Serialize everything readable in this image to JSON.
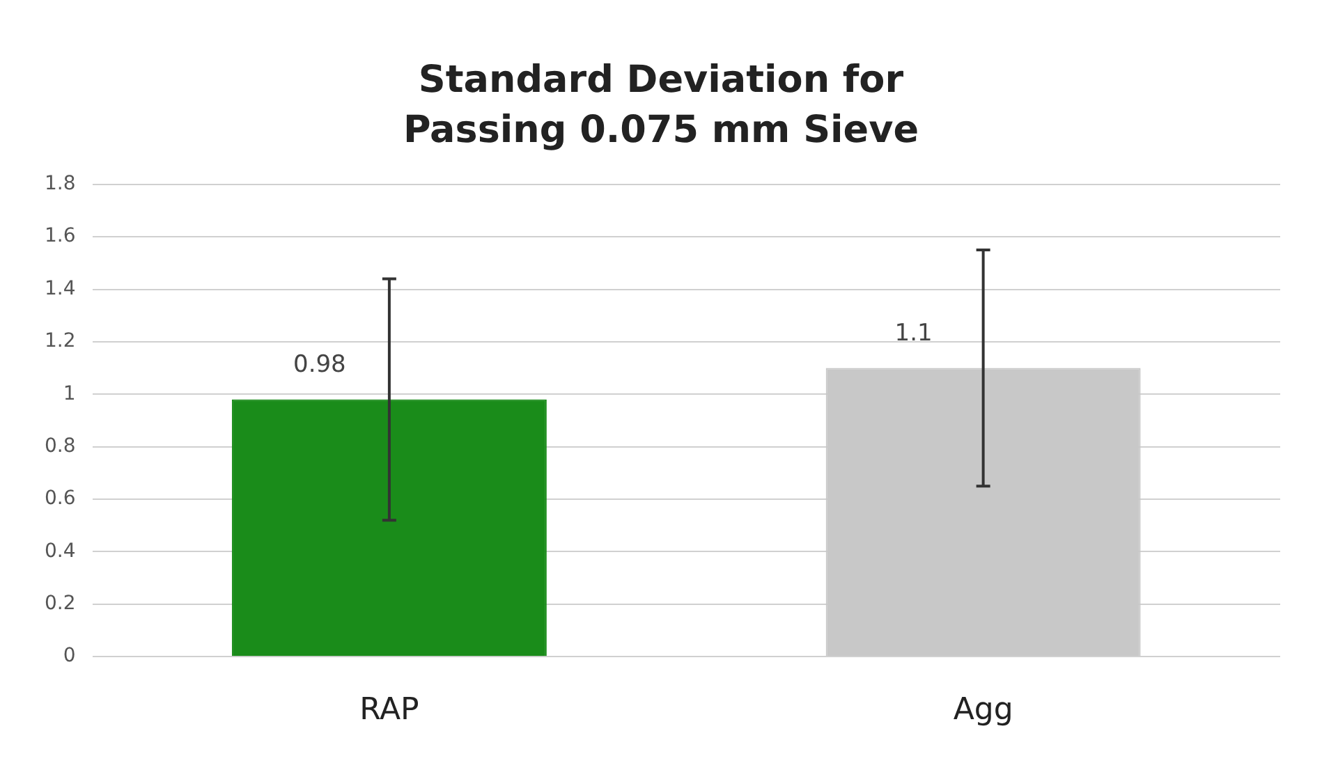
{
  "chart_data": {
    "type": "bar",
    "title": "Standard Deviation for Passing 0.075 mm Sieve",
    "categories": [
      "RAP",
      "Agg"
    ],
    "values": [
      0.98,
      1.1
    ],
    "colors": [
      "#1a8c1a",
      "#c8c8c8"
    ],
    "errors": [
      0.46,
      0.45
    ],
    "ylim": [
      0,
      1.8
    ],
    "yticks": [
      0,
      0.2,
      0.4,
      0.6,
      0.8,
      1,
      1.2,
      1.4,
      1.6,
      1.8
    ],
    "grid": "y",
    "data_labels": true
  }
}
